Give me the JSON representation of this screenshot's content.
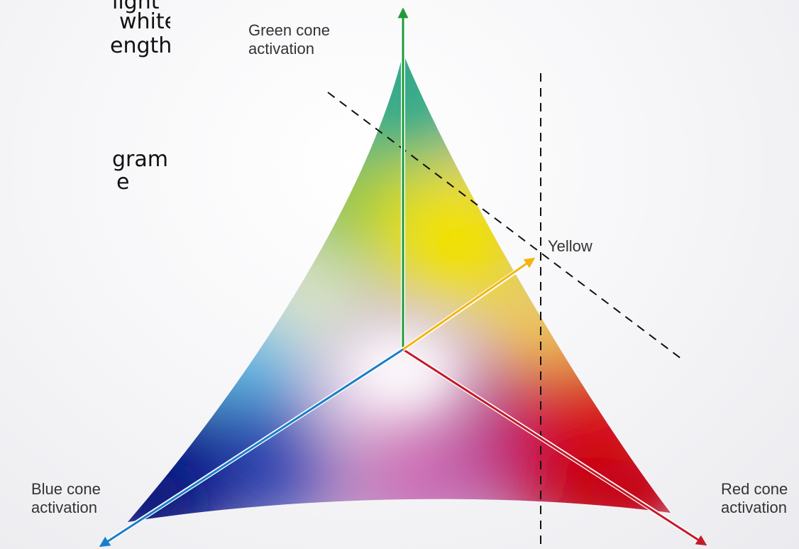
{
  "slide_text": {
    "lines": [
      "light",
      "white",
      "engths",
      "gram -",
      "e"
    ]
  },
  "labels": {
    "green": "Green cone\nactivation",
    "blue": "Blue cone\nactivation",
    "red": "Red cone\nactivation",
    "yellow": "Yellow"
  },
  "colors": {
    "green_axis": "#1f9a3a",
    "blue_axis": "#1a7fc9",
    "red_axis": "#c41a2a",
    "yellow_axis": "#f2b511"
  }
}
